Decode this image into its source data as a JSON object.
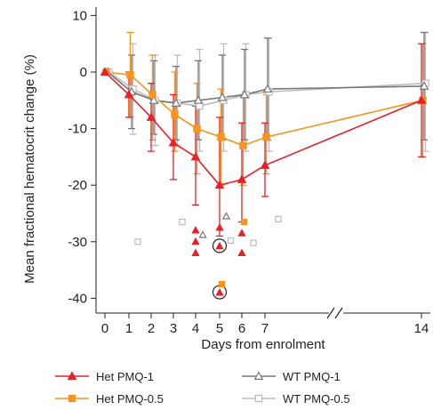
{
  "chart_data": {
    "type": "line",
    "title": "",
    "xlabel": "Days from enrolment",
    "ylabel": "Mean fractional hematocrit change (%)",
    "ylim": [
      -42,
      11
    ],
    "x_ticks": [
      0,
      1,
      2,
      3,
      4,
      5,
      6,
      7,
      14
    ],
    "y_ticks": [
      10,
      0,
      -10,
      -20,
      -30,
      -40
    ],
    "axis_break": "between 7 and 14",
    "grid": false,
    "legend_position": "bottom",
    "series": [
      {
        "name": "Het PMQ-1",
        "color": "#e8202a",
        "marker": "filled-triangle",
        "x": [
          0,
          1,
          2,
          3,
          4,
          5,
          6,
          7,
          14
        ],
        "y": [
          0,
          -4,
          -8,
          -12.5,
          -15,
          -20,
          -19,
          -16.5,
          -5
        ],
        "err_low": [
          0,
          -8,
          -14,
          -19,
          -23.5,
          -29,
          -26.5,
          -22,
          -15
        ],
        "err_high": [
          0,
          0,
          -2,
          -4,
          -6,
          -8,
          -9,
          -9,
          5
        ]
      },
      {
        "name": "Het PMQ-0.5",
        "color": "#f7941d",
        "marker": "filled-square",
        "x": [
          0,
          1,
          2,
          3,
          4,
          5,
          6,
          7,
          14
        ],
        "y": [
          0,
          -0.5,
          -4,
          -7.5,
          -10,
          -11.5,
          -13,
          -11.5,
          -5
        ],
        "err_low": [
          0,
          -8,
          -12,
          -14,
          -18,
          -20,
          -20,
          -18,
          -15
        ],
        "err_high": [
          0,
          7,
          3,
          0,
          -2,
          -3,
          -4,
          -4,
          5
        ]
      },
      {
        "name": "WT PMQ-1",
        "color": "#777777",
        "marker": "open-triangle",
        "x": [
          0,
          1,
          2,
          3,
          4,
          5,
          6,
          7,
          14
        ],
        "y": [
          0,
          -3.5,
          -5,
          -5.5,
          -5,
          -4.5,
          -4,
          -3,
          -2.5
        ],
        "err_low": [
          0,
          -10,
          -11,
          -12,
          -12,
          -12,
          -12,
          -12,
          -12
        ],
        "err_high": [
          0,
          3,
          2,
          1,
          2,
          3,
          4,
          6,
          7
        ]
      },
      {
        "name": "WT PMQ-0.5",
        "color": "#bbbbbb",
        "marker": "open-square",
        "x": [
          0,
          1,
          2,
          3,
          4,
          5,
          6,
          7,
          14
        ],
        "y": [
          0,
          -3,
          -5,
          -5.5,
          -6,
          -5,
          -4,
          -3.5,
          -2
        ],
        "err_low": [
          0,
          -11,
          -13,
          -13,
          -14,
          -14,
          -14,
          -14,
          -14
        ],
        "err_high": [
          0,
          5,
          3,
          3,
          4,
          5,
          5,
          6,
          7
        ]
      }
    ],
    "outliers": [
      {
        "series": "Het PMQ-1",
        "x": 4,
        "y": -28
      },
      {
        "series": "Het PMQ-1",
        "x": 4,
        "y": -30
      },
      {
        "series": "Het PMQ-1",
        "x": 4,
        "y": -32
      },
      {
        "series": "Het PMQ-1",
        "x": 5,
        "y": -27.5
      },
      {
        "series": "Het PMQ-1",
        "x": 5,
        "y": -30.8,
        "circled": true
      },
      {
        "series": "Het PMQ-1",
        "x": 5,
        "y": -39,
        "circled": true
      },
      {
        "series": "Het PMQ-1",
        "x": 6,
        "y": -28.5
      },
      {
        "series": "Het PMQ-1",
        "x": 6,
        "y": -32
      },
      {
        "series": "Het PMQ-0.5",
        "x": 5.1,
        "y": -37.5
      },
      {
        "series": "Het PMQ-0.5",
        "x": 6.1,
        "y": -26.5
      },
      {
        "series": "WT PMQ-1",
        "x": 4.3,
        "y": -28.8
      },
      {
        "series": "WT PMQ-1",
        "x": 5.3,
        "y": -25.5
      },
      {
        "series": "WT PMQ-0.5",
        "x": 1.4,
        "y": -30
      },
      {
        "series": "WT PMQ-0.5",
        "x": 3.4,
        "y": -26.5
      },
      {
        "series": "WT PMQ-0.5",
        "x": 5.5,
        "y": -29.8
      },
      {
        "series": "WT PMQ-0.5",
        "x": 6.5,
        "y": -30.2
      },
      {
        "series": "WT PMQ-0.5",
        "x": 7.6,
        "y": -26
      }
    ],
    "legend": [
      {
        "label": "Het PMQ-1",
        "series": "Het PMQ-1"
      },
      {
        "label": "WT PMQ-1",
        "series": "WT PMQ-1"
      },
      {
        "label": "Het PMQ-0.5",
        "series": "Het PMQ-0.5"
      },
      {
        "label": "WT PMQ-0.5",
        "series": "WT PMQ-0.5"
      }
    ]
  }
}
